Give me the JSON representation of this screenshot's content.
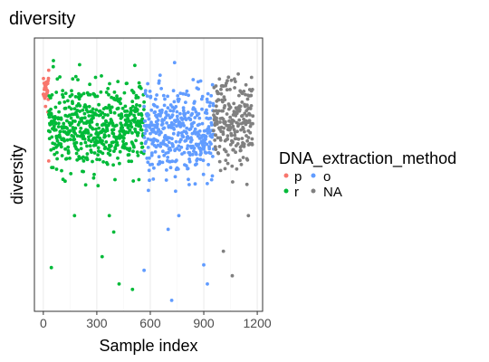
{
  "chart_data": {
    "type": "scatter",
    "title": "diversity",
    "xlabel": "Sample index",
    "ylabel": "diversity",
    "xlim": [
      -50,
      1230
    ],
    "ylim": [
      0,
      1
    ],
    "x_ticks": [
      0,
      300,
      600,
      900,
      1200
    ],
    "x_tick_labels": [
      "0",
      "300",
      "600",
      "900",
      "1200"
    ],
    "y_ticks_shown": false,
    "grid": "vertical",
    "legend": {
      "title": "DNA_extraction_method",
      "placement": "right",
      "entries": [
        {
          "label": "p",
          "color": "#F8766D"
        },
        {
          "label": "o",
          "color": "#619CFF"
        },
        {
          "label": "r",
          "color": "#00BA38"
        },
        {
          "label": "NA",
          "color": "#808080"
        }
      ]
    },
    "series": [
      {
        "name": "p",
        "color": "#F8766D",
        "x_range": [
          0,
          30
        ],
        "n_points": 30,
        "y_range": [
          0.55,
          0.93
        ]
      },
      {
        "name": "r",
        "color": "#00BA38",
        "x_range": [
          30,
          565
        ],
        "n_points": 540,
        "y_range": [
          0.08,
          0.96
        ]
      },
      {
        "name": "o",
        "color": "#619CFF",
        "x_range": [
          565,
          955
        ],
        "n_points": 400,
        "y_range": [
          0.04,
          0.95
        ]
      },
      {
        "name": "NA",
        "color": "#808080",
        "x_range": [
          955,
          1175
        ],
        "n_points": 230,
        "y_range": [
          0.1,
          0.98
        ]
      }
    ],
    "outliers": [
      {
        "series": "p",
        "x": 30,
        "y": 0.55
      },
      {
        "series": "r",
        "x": 45,
        "y": 0.16
      },
      {
        "series": "r",
        "x": 175,
        "y": 0.35
      },
      {
        "series": "r",
        "x": 370,
        "y": 0.35
      },
      {
        "series": "r",
        "x": 330,
        "y": 0.2
      },
      {
        "series": "r",
        "x": 425,
        "y": 0.1
      },
      {
        "series": "r",
        "x": 500,
        "y": 0.08
      },
      {
        "series": "r",
        "x": 395,
        "y": 0.29
      },
      {
        "series": "o",
        "x": 565,
        "y": 0.15
      },
      {
        "series": "o",
        "x": 720,
        "y": 0.04
      },
      {
        "series": "o",
        "x": 900,
        "y": 0.17
      },
      {
        "series": "o",
        "x": 920,
        "y": 0.1
      },
      {
        "series": "o",
        "x": 700,
        "y": 0.3
      },
      {
        "series": "o",
        "x": 760,
        "y": 0.35
      },
      {
        "series": "NA",
        "x": 1010,
        "y": 0.22
      },
      {
        "series": "NA",
        "x": 1060,
        "y": 0.13
      },
      {
        "series": "NA",
        "x": 1150,
        "y": 0.35
      }
    ]
  }
}
